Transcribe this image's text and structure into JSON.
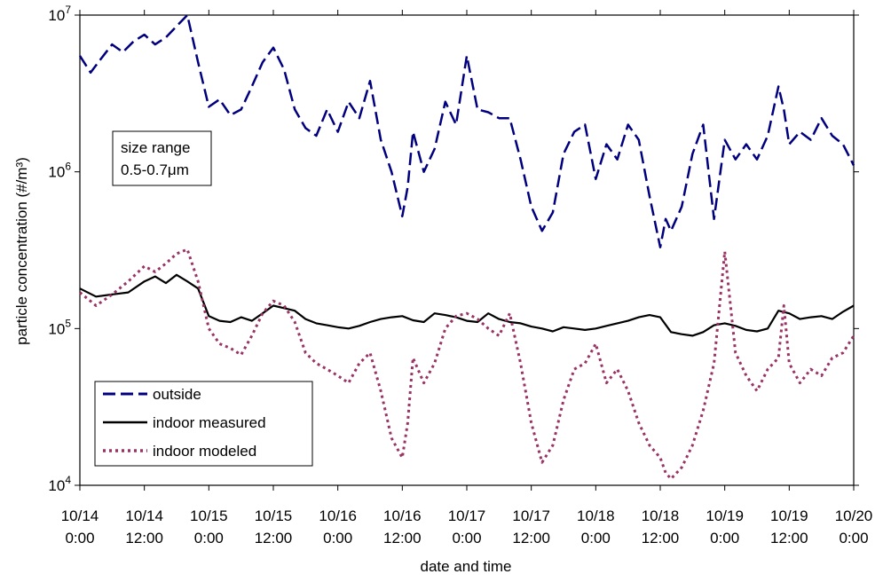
{
  "chart_data": {
    "type": "line",
    "y_scale": "log",
    "ylim": [
      10000,
      10000000
    ],
    "xlim": [
      0,
      144
    ],
    "x_unit": "hours since 10/14 0:00",
    "xlabel": "date and time",
    "ylabel": "particle concentration (#/m³)",
    "y_ticks": [
      {
        "value": 10000,
        "mantissa": "10",
        "exp": "4"
      },
      {
        "value": 100000,
        "mantissa": "10",
        "exp": "5"
      },
      {
        "value": 1000000,
        "mantissa": "10",
        "exp": "6"
      },
      {
        "value": 10000000,
        "mantissa": "10",
        "exp": "7"
      }
    ],
    "x_ticks": [
      {
        "x": 0,
        "date": "10/14",
        "time": "0:00"
      },
      {
        "x": 12,
        "date": "10/14",
        "time": "12:00"
      },
      {
        "x": 24,
        "date": "10/15",
        "time": "0:00"
      },
      {
        "x": 36,
        "date": "10/15",
        "time": "12:00"
      },
      {
        "x": 48,
        "date": "10/16",
        "time": "0:00"
      },
      {
        "x": 60,
        "date": "10/16",
        "time": "12:00"
      },
      {
        "x": 72,
        "date": "10/17",
        "time": "0:00"
      },
      {
        "x": 84,
        "date": "10/17",
        "time": "12:00"
      },
      {
        "x": 96,
        "date": "10/18",
        "time": "0:00"
      },
      {
        "x": 108,
        "date": "10/18",
        "time": "12:00"
      },
      {
        "x": 120,
        "date": "10/19",
        "time": "0:00"
      },
      {
        "x": 132,
        "date": "10/19",
        "time": "12:00"
      },
      {
        "x": 144,
        "date": "10/20",
        "time": "0:00"
      }
    ],
    "annotation": [
      "size range",
      "0.5-0.7μm"
    ],
    "legend_position": "bottom-left",
    "series": [
      {
        "name": "outside",
        "color": "#00007f",
        "style": "dashed",
        "x": [
          0,
          2,
          4,
          6,
          8,
          10,
          12,
          14,
          16,
          18,
          20,
          22,
          24,
          26,
          28,
          30,
          32,
          34,
          36,
          38,
          40,
          42,
          44,
          46,
          48,
          50,
          52,
          54,
          56,
          58,
          60,
          61,
          62,
          64,
          66,
          68,
          70,
          72,
          74,
          76,
          78,
          80,
          82,
          84,
          86,
          88,
          90,
          92,
          94,
          96,
          98,
          100,
          102,
          104,
          106,
          108,
          109,
          110,
          112,
          114,
          116,
          118,
          120,
          122,
          124,
          126,
          128,
          130,
          131,
          132,
          134,
          136,
          138,
          140,
          142,
          144
        ],
        "values": [
          5500000,
          4300000,
          5300000,
          6500000,
          5800000,
          6800000,
          7500000,
          6500000,
          7200000,
          8500000,
          10000000,
          5000000,
          2600000,
          2900000,
          2300000,
          2500000,
          3500000,
          5000000,
          6200000,
          4500000,
          2500000,
          1900000,
          1700000,
          2500000,
          1800000,
          2800000,
          2200000,
          3800000,
          1600000,
          1000000,
          520000,
          800000,
          1800000,
          1000000,
          1400000,
          2800000,
          2000000,
          5500000,
          2500000,
          2400000,
          2200000,
          2200000,
          1200000,
          600000,
          420000,
          550000,
          1300000,
          1800000,
          2000000,
          900000,
          1500000,
          1200000,
          2000000,
          1600000,
          700000,
          330000,
          500000,
          420000,
          600000,
          1300000,
          2000000,
          500000,
          1600000,
          1200000,
          1500000,
          1200000,
          1700000,
          3500000,
          2500000,
          1500000,
          1800000,
          1600000,
          2200000,
          1700000,
          1500000,
          1100000
        ]
      },
      {
        "name": "indoor measured",
        "color": "#000000",
        "style": "solid",
        "x": [
          0,
          3,
          6,
          9,
          12,
          14,
          16,
          18,
          20,
          22,
          24,
          26,
          28,
          30,
          32,
          34,
          36,
          38,
          40,
          42,
          44,
          46,
          48,
          50,
          52,
          54,
          56,
          58,
          60,
          62,
          64,
          66,
          68,
          70,
          72,
          74,
          76,
          78,
          80,
          82,
          84,
          86,
          88,
          90,
          92,
          94,
          96,
          98,
          100,
          102,
          104,
          106,
          108,
          110,
          112,
          114,
          116,
          118,
          120,
          122,
          124,
          126,
          128,
          130,
          132,
          134,
          136,
          138,
          140,
          142,
          144
        ],
        "values": [
          180000,
          160000,
          165000,
          170000,
          200000,
          215000,
          195000,
          220000,
          200000,
          180000,
          120000,
          112000,
          110000,
          118000,
          112000,
          125000,
          140000,
          135000,
          130000,
          115000,
          108000,
          105000,
          102000,
          100000,
          104000,
          110000,
          115000,
          118000,
          120000,
          113000,
          110000,
          125000,
          122000,
          118000,
          112000,
          110000,
          125000,
          115000,
          110000,
          108000,
          103000,
          100000,
          96000,
          102000,
          100000,
          98000,
          100000,
          104000,
          108000,
          112000,
          118000,
          122000,
          118000,
          95000,
          92000,
          90000,
          95000,
          105000,
          108000,
          104000,
          98000,
          96000,
          100000,
          130000,
          125000,
          115000,
          118000,
          120000,
          115000,
          128000,
          140000
        ]
      },
      {
        "name": "indoor modeled",
        "color": "#993366",
        "style": "dotted",
        "x": [
          0,
          3,
          6,
          9,
          12,
          14,
          16,
          18,
          20,
          22,
          24,
          26,
          28,
          30,
          32,
          34,
          36,
          38,
          40,
          42,
          44,
          46,
          48,
          50,
          52,
          54,
          56,
          58,
          60,
          61,
          62,
          64,
          66,
          68,
          70,
          72,
          74,
          76,
          78,
          80,
          82,
          84,
          86,
          88,
          90,
          92,
          94,
          96,
          98,
          100,
          102,
          104,
          106,
          108,
          109,
          110,
          112,
          114,
          116,
          118,
          120,
          122,
          124,
          126,
          128,
          130,
          131,
          132,
          134,
          136,
          138,
          140,
          142,
          144
        ],
        "values": [
          170000,
          140000,
          165000,
          200000,
          250000,
          230000,
          260000,
          300000,
          320000,
          200000,
          100000,
          80000,
          75000,
          68000,
          90000,
          125000,
          150000,
          140000,
          110000,
          70000,
          60000,
          55000,
          50000,
          45000,
          60000,
          70000,
          40000,
          20000,
          15000,
          25000,
          65000,
          45000,
          60000,
          100000,
          120000,
          125000,
          115000,
          100000,
          90000,
          125000,
          60000,
          25000,
          14000,
          18000,
          35000,
          55000,
          60000,
          80000,
          45000,
          55000,
          40000,
          25000,
          18000,
          15000,
          12000,
          11000,
          13000,
          18000,
          30000,
          60000,
          310000,
          70000,
          50000,
          40000,
          55000,
          65000,
          140000,
          60000,
          45000,
          55000,
          50000,
          65000,
          70000,
          90000
        ]
      }
    ]
  }
}
